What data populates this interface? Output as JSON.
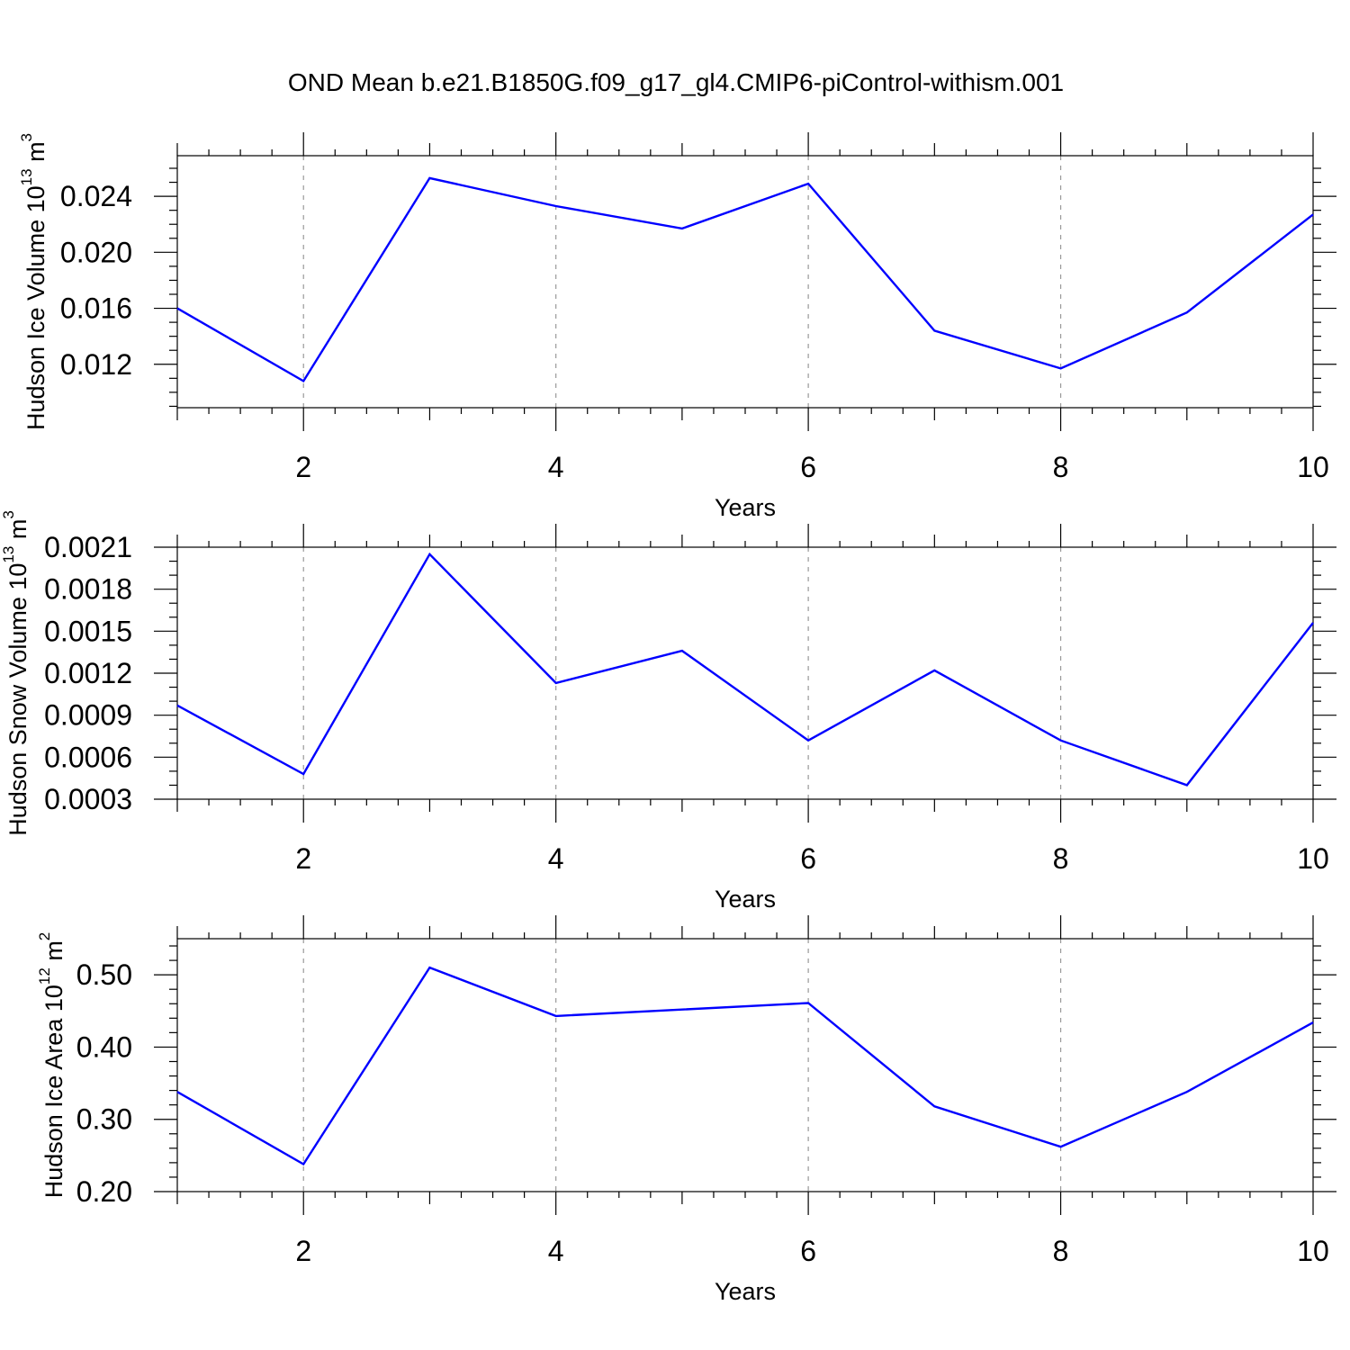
{
  "figure": {
    "title": "OND Mean b.e21.B1850G.f09_g17_gl4.CMIP6-piControl-withism.001"
  },
  "chart_data": [
    {
      "type": "line",
      "xlabel": "Years",
      "ylabel": {
        "text": "Hudson Ice Volume 10",
        "exp": "13",
        "unit": " m",
        "unit_exp": "3"
      },
      "x": [
        1,
        2,
        3,
        4,
        5,
        6,
        7,
        8,
        9,
        10
      ],
      "y": [
        0.016,
        0.0108,
        0.0253,
        0.0233,
        0.0217,
        0.0249,
        0.0144,
        0.0117,
        0.0157,
        0.0227
      ],
      "xlim": [
        1,
        10
      ],
      "ylim": [
        0.0089,
        0.0269
      ],
      "xticks": [
        2,
        4,
        6,
        8,
        10
      ],
      "xtick_labels": [
        "2",
        "4",
        "6",
        "8",
        "10"
      ],
      "yticks": [
        0.012,
        0.016,
        0.02,
        0.024
      ],
      "ytick_labels": [
        "0.012",
        "0.016",
        "0.020",
        "0.024"
      ],
      "yminor_step": 0.001,
      "grid": "vertical-dashed",
      "line_color": "#0000ff"
    },
    {
      "type": "line",
      "xlabel": "Years",
      "ylabel": {
        "text": "Hudson Snow Volume 10",
        "exp": "13",
        "unit": " m",
        "unit_exp": "3"
      },
      "x": [
        1,
        2,
        3,
        4,
        5,
        6,
        7,
        8,
        9,
        10
      ],
      "y": [
        0.00097,
        0.00048,
        0.00205,
        0.00113,
        0.00136,
        0.00072,
        0.00122,
        0.00072,
        0.0004,
        0.00156
      ],
      "xlim": [
        1,
        10
      ],
      "ylim": [
        0.0003,
        0.0021
      ],
      "xticks": [
        2,
        4,
        6,
        8,
        10
      ],
      "xtick_labels": [
        "2",
        "4",
        "6",
        "8",
        "10"
      ],
      "yticks": [
        0.0003,
        0.0006,
        0.0009,
        0.0012,
        0.0015,
        0.0018,
        0.0021
      ],
      "ytick_labels": [
        "0.0003",
        "0.0006",
        "0.0009",
        "0.0012",
        "0.0015",
        "0.0018",
        "0.0021"
      ],
      "yminor_step": 0.0001,
      "grid": "vertical-dashed",
      "line_color": "#0000ff"
    },
    {
      "type": "line",
      "xlabel": "Years",
      "ylabel": {
        "text": "Hudson Ice Area 10",
        "exp": "12",
        "unit": " m",
        "unit_exp": "2"
      },
      "x": [
        1,
        2,
        3,
        4,
        5,
        6,
        7,
        8,
        9,
        10
      ],
      "y": [
        0.338,
        0.238,
        0.51,
        0.443,
        0.452,
        0.461,
        0.318,
        0.262,
        0.338,
        0.434
      ],
      "xlim": [
        1,
        10
      ],
      "ylim": [
        0.2,
        0.55
      ],
      "xticks": [
        2,
        4,
        6,
        8,
        10
      ],
      "xtick_labels": [
        "2",
        "4",
        "6",
        "8",
        "10"
      ],
      "yticks": [
        0.2,
        0.3,
        0.4,
        0.5
      ],
      "ytick_labels": [
        "0.20",
        "0.30",
        "0.40",
        "0.50"
      ],
      "yminor_step": 0.02,
      "grid": "vertical-dashed",
      "line_color": "#0000ff"
    }
  ]
}
